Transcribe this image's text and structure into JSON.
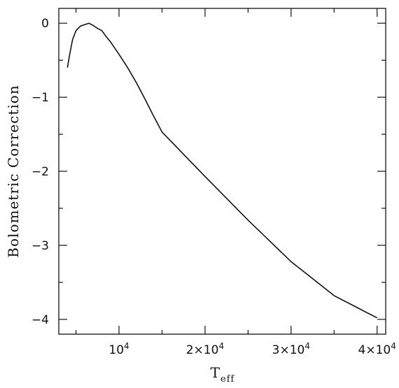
{
  "chart_data": {
    "type": "line",
    "title": "",
    "xlabel": "T",
    "xlabel_sub": "eff",
    "ylabel": "Bolometric Correction",
    "xlim": [
      3000,
      41000
    ],
    "ylim": [
      -4.2,
      0.2
    ],
    "xticks": [
      {
        "value": 10000,
        "label": "10",
        "exp": "4"
      },
      {
        "value": 20000,
        "label": "2×10",
        "exp": "4"
      },
      {
        "value": 30000,
        "label": "3×10",
        "exp": "4"
      },
      {
        "value": 40000,
        "label": "4×10",
        "exp": "4"
      }
    ],
    "xminor": [
      5000,
      15000,
      25000,
      35000
    ],
    "yticks": [
      {
        "value": 0,
        "label": "0"
      },
      {
        "value": -1,
        "label": "−1"
      },
      {
        "value": -2,
        "label": "−2"
      },
      {
        "value": -3,
        "label": "−3"
      },
      {
        "value": -4,
        "label": "−4"
      }
    ],
    "yminor": [
      -0.5,
      -1.5,
      -2.5,
      -3.5
    ],
    "series": [
      {
        "x": [
          4000,
          4300,
          4600,
          5000,
          5500,
          6000,
          6500,
          7000,
          7500,
          8000,
          8500,
          9000,
          10000,
          11000,
          12000,
          13000,
          14000,
          15000,
          20000,
          25000,
          30000,
          35000,
          40000
        ],
        "y": [
          -0.6,
          -0.4,
          -0.22,
          -0.1,
          -0.04,
          -0.02,
          0.0,
          -0.03,
          -0.07,
          -0.1,
          -0.18,
          -0.25,
          -0.42,
          -0.6,
          -0.8,
          -1.02,
          -1.25,
          -1.47,
          -2.07,
          -2.66,
          -3.22,
          -3.68,
          -3.98
        ]
      }
    ]
  }
}
